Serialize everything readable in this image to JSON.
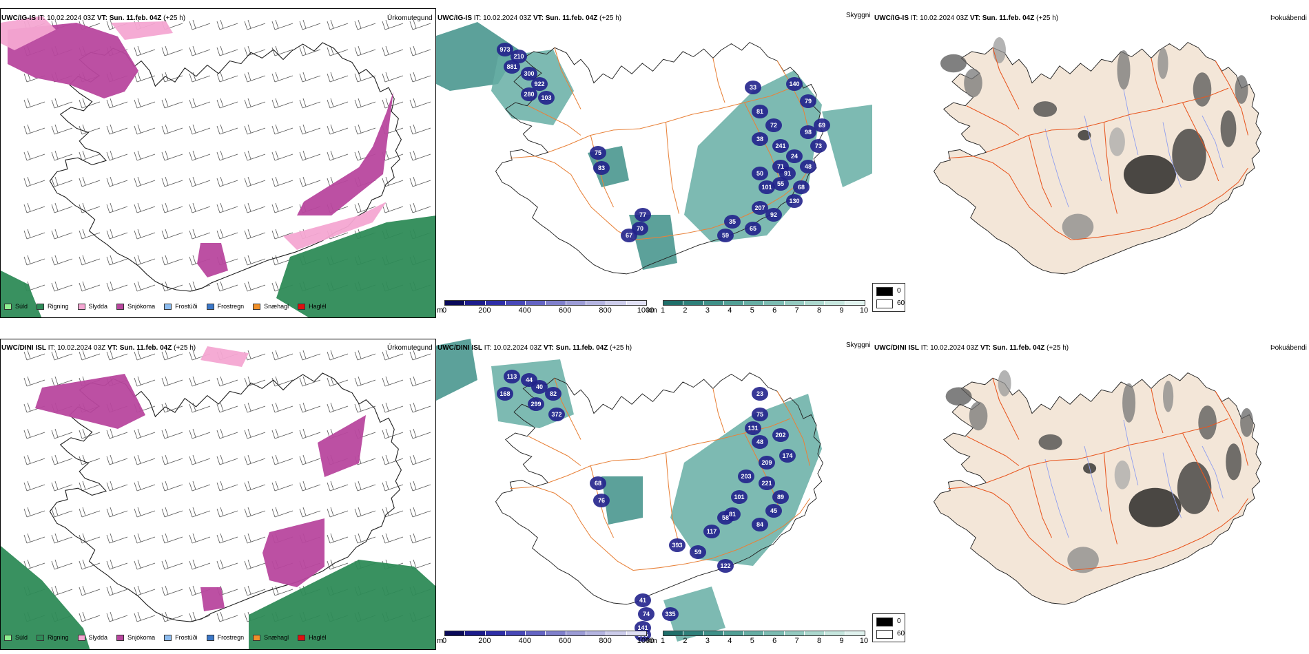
{
  "rows": [
    {
      "model": "UWC/IG-IS",
      "issue": "IT: 10.02.2024 03Z",
      "valid_label": "VT:",
      "valid": "Sun. 11.feb. 04Z",
      "lead": "(+25 h)",
      "precip_title": "Úrkomutegund",
      "cloud_title": "Skyggni",
      "fog_title": "Þokuábendi",
      "vis_numbers": [
        "973",
        "210",
        "881",
        "300",
        "922",
        "280",
        "103",
        "75",
        "83",
        "77",
        "70",
        "67",
        "33",
        "81",
        "140",
        "79",
        "72",
        "38",
        "241",
        "24",
        "91",
        "68",
        "101",
        "207",
        "98",
        "73",
        "71",
        "92",
        "59",
        "35",
        "65",
        "130",
        "48",
        "69",
        "50",
        "55"
      ]
    },
    {
      "model": "UWC/DINI ISL",
      "issue": "IT: 10.02.2024 03Z",
      "valid_label": "VT:",
      "valid": "Sun. 11.feb. 04Z",
      "lead": "(+25 h)",
      "precip_title": "Úrkomutegund",
      "cloud_title": "Skyggni",
      "fog_title": "Þokuábendi",
      "vis_numbers": [
        "113",
        "44",
        "168",
        "40",
        "82",
        "299",
        "372",
        "68",
        "76",
        "41",
        "74",
        "141",
        "385",
        "335",
        "75",
        "131",
        "48",
        "202",
        "174",
        "209",
        "203",
        "101",
        "81",
        "221",
        "89",
        "117",
        "58",
        "84",
        "45",
        "59",
        "122",
        "393",
        "23"
      ]
    }
  ],
  "precip_legend": [
    {
      "label": "Súld",
      "color": "#90ee90"
    },
    {
      "label": "Rigning",
      "color": "#2e8b57"
    },
    {
      "label": "Slydda",
      "color": "#f4a6d2"
    },
    {
      "label": "Snjókoma",
      "color": "#b8479e"
    },
    {
      "label": "Frostúði",
      "color": "#8cbcf0"
    },
    {
      "label": "Frostregn",
      "color": "#3c78c8"
    },
    {
      "label": "Snæhagl",
      "color": "#f0902a"
    },
    {
      "label": "Haglél",
      "color": "#e01010"
    }
  ],
  "cloud_base_bar": {
    "unit": "m",
    "ticks": [
      "0",
      "200",
      "400",
      "600",
      "800",
      "1000"
    ],
    "colors": [
      "#0a0a5a",
      "#1c1c8c",
      "#2e2ea8",
      "#4848b8",
      "#6464c4",
      "#8080cc",
      "#9c9cd6",
      "#b4b4e0",
      "#ccccea",
      "#e0e0f4"
    ]
  },
  "visibility_bar": {
    "unit": "km",
    "ticks": [
      "1",
      "2",
      "3",
      "4",
      "5",
      "6",
      "7",
      "8",
      "9",
      "10"
    ],
    "colors": [
      "#1f6f6a",
      "#2e807a",
      "#3f9088",
      "#52a096",
      "#66aea4",
      "#7cbcb2",
      "#94cac0",
      "#acd8ce",
      "#c6e6de",
      "#e0f2ee"
    ]
  },
  "fog_legend": [
    {
      "label": "0",
      "color": "#000000"
    },
    {
      "label": "60",
      "color": "#ffffff"
    }
  ],
  "colors": {
    "land": "#f3e6d8",
    "road": "#e8823a",
    "road_fog": "#e8561f",
    "river": "#8c9cf0",
    "coast": "#222222",
    "rain": "#2e8b57",
    "snow": "#b8479e",
    "sleet": "#f4a6d2",
    "cloud_fill": "#3f9088",
    "cloud_fill_light": "#66aea4",
    "low_cloud": "#22228c"
  }
}
